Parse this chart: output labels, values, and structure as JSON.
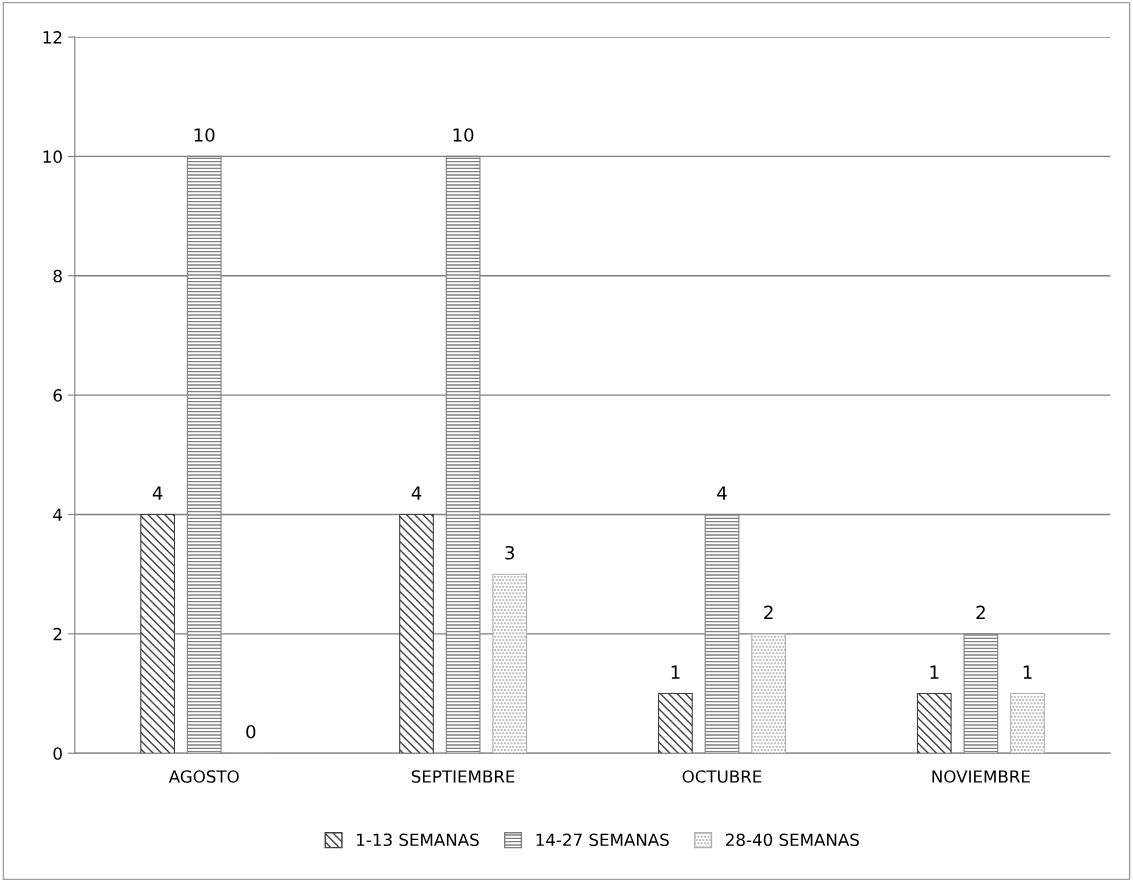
{
  "chart_data": {
    "type": "bar",
    "categories": [
      "AGOSTO",
      "SEPTIEMBRE",
      "OCTUBRE",
      "NOVIEMBRE"
    ],
    "series": [
      {
        "name": "1-13 SEMANAS",
        "color": "#404040",
        "values": [
          4,
          4,
          1,
          1
        ]
      },
      {
        "name": "14-27 SEMANAS",
        "color": "#808080",
        "values": [
          10,
          10,
          4,
          2
        ]
      },
      {
        "name": "28-40 SEMANAS",
        "color": "#b0b0b0",
        "values": [
          0,
          3,
          2,
          1
        ]
      }
    ],
    "ylim": [
      0,
      12
    ],
    "yticks": [
      0,
      2,
      4,
      6,
      8,
      10,
      12
    ],
    "grid": "y",
    "legend": "bottom",
    "data_labels": true
  }
}
